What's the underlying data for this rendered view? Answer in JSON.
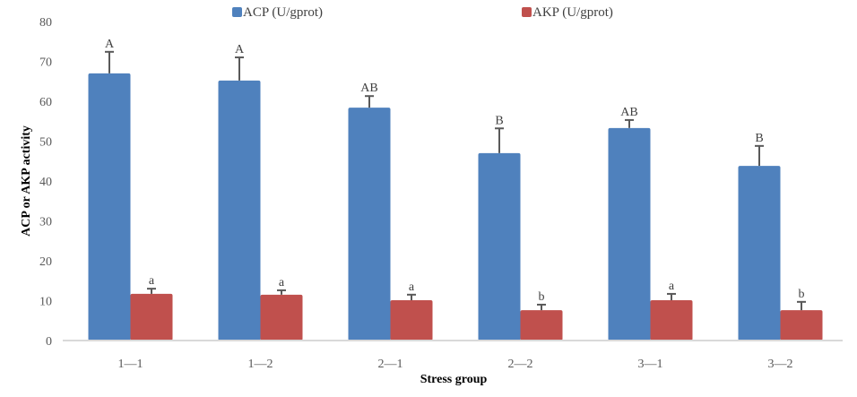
{
  "chart_data": {
    "type": "bar",
    "title": "",
    "xlabel": "Stress group",
    "ylabel": "ACP or AKP activity",
    "ylim": [
      0,
      80
    ],
    "yticks": [
      0,
      10,
      20,
      30,
      40,
      50,
      60,
      70,
      80
    ],
    "grid": false,
    "legend_position": "top",
    "categories": [
      "1—1",
      "1—2",
      "2—1",
      "2—2",
      "3—1",
      "3—2"
    ],
    "series": [
      {
        "name": "ACP (U/gprot)",
        "color": "#4F81BD",
        "values": [
          67.0,
          65.2,
          58.4,
          47.0,
          53.3,
          43.8
        ],
        "error_upper": [
          72.4,
          71.0,
          61.3,
          53.2,
          55.3,
          48.8
        ],
        "labels": [
          "A",
          "A",
          "AB",
          "B",
          "AB",
          "B"
        ]
      },
      {
        "name": "AKP (U/gprot)",
        "color": "#C0504D",
        "values": [
          11.7,
          11.5,
          10.1,
          7.6,
          10.1,
          7.6
        ],
        "error_upper": [
          13.0,
          12.6,
          11.5,
          9.0,
          11.7,
          9.7
        ],
        "labels": [
          "a",
          "a",
          "a",
          "b",
          "a",
          "b"
        ]
      }
    ]
  }
}
